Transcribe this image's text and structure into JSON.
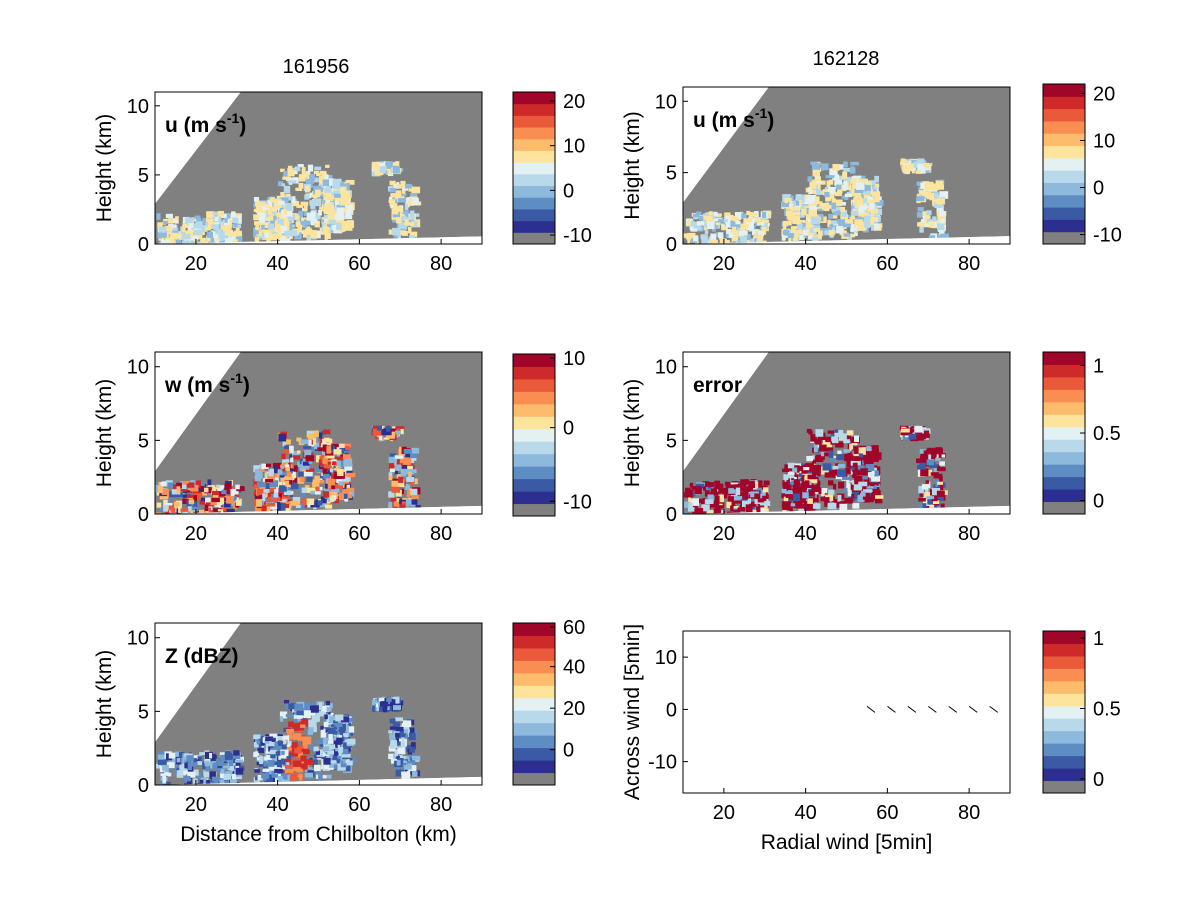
{
  "figure": {
    "columns": [
      {
        "title": "161956"
      },
      {
        "title": "162128"
      }
    ]
  },
  "colormap": [
    "#2c2f8f",
    "#3a5aa5",
    "#5e8dc4",
    "#8db9dd",
    "#b7d9ea",
    "#e3f1f3",
    "#fde49d",
    "#fdbc6c",
    "#f98d52",
    "#ea5a3a",
    "#cf2a2a",
    "#a0052a"
  ],
  "missing_color": "#808080",
  "chart_data": [
    {
      "id": "u1",
      "type": "heatmap",
      "label": "u (m s",
      "label_sup": "-1",
      "label_tail": ")",
      "xlim": [
        10,
        90
      ],
      "ylim": [
        0,
        11
      ],
      "xticks": [
        20,
        40,
        60,
        80
      ],
      "yticks": [
        0,
        5,
        10
      ],
      "ylabel": "Height (km)",
      "xlabel": "",
      "colorbar": {
        "range": [
          -12,
          22
        ],
        "ticks": [
          20,
          10,
          0,
          -10
        ]
      }
    },
    {
      "id": "u2",
      "type": "heatmap",
      "label": "u (m s",
      "label_sup": "-1",
      "label_tail": ")",
      "xlim": [
        10,
        90
      ],
      "ylim": [
        0,
        11
      ],
      "xticks": [
        20,
        40,
        60,
        80
      ],
      "yticks": [
        0,
        5,
        10
      ],
      "ylabel": "Height (km)",
      "xlabel": "",
      "colorbar": {
        "range": [
          -12,
          22
        ],
        "ticks": [
          20,
          10,
          0,
          -10
        ]
      }
    },
    {
      "id": "w",
      "type": "heatmap",
      "label": "w (m s",
      "label_sup": "-1",
      "label_tail": ")",
      "xlim": [
        10,
        90
      ],
      "ylim": [
        0,
        11
      ],
      "xticks": [
        20,
        40,
        60,
        80
      ],
      "yticks": [
        0,
        5,
        10
      ],
      "ylabel": "Height (km)",
      "xlabel": "",
      "colorbar": {
        "range": [
          -12,
          10
        ],
        "ticks": [
          10,
          0,
          -10
        ]
      }
    },
    {
      "id": "err",
      "type": "heatmap",
      "label": "error",
      "label_sup": "",
      "label_tail": "",
      "xlim": [
        10,
        90
      ],
      "ylim": [
        0,
        11
      ],
      "xticks": [
        20,
        40,
        60,
        80
      ],
      "yticks": [
        0,
        5,
        10
      ],
      "ylabel": "Height (km)",
      "xlabel": "",
      "colorbar": {
        "range": [
          -0.1,
          1.1
        ],
        "ticks": [
          1,
          0.5,
          0
        ]
      }
    },
    {
      "id": "z",
      "type": "heatmap",
      "label": "Z (dBZ)",
      "label_sup": "",
      "label_tail": "",
      "xlim": [
        10,
        90
      ],
      "ylim": [
        0,
        11
      ],
      "xticks": [
        20,
        40,
        60,
        80
      ],
      "yticks": [
        0,
        5,
        10
      ],
      "ylabel": "Height (km)",
      "xlabel": "Distance from Chilbolton (km)",
      "colorbar": {
        "range": [
          -17,
          61
        ],
        "ticks": [
          60,
          40,
          20,
          0
        ]
      }
    },
    {
      "id": "q",
      "type": "scatter",
      "label": "",
      "xlim": [
        10,
        90
      ],
      "ylim": [
        -16,
        15
      ],
      "xticks": [
        20,
        40,
        60,
        80
      ],
      "yticks": [
        10,
        0,
        -10
      ],
      "ylabel": "Across wind [5min]",
      "xlabel": "Radial wind [5min]",
      "arrows": [
        {
          "x": 56,
          "y": 0
        },
        {
          "x": 61,
          "y": 0
        },
        {
          "x": 66,
          "y": 0
        },
        {
          "x": 71,
          "y": 0
        },
        {
          "x": 76,
          "y": 0
        },
        {
          "x": 81,
          "y": 0
        },
        {
          "x": 86,
          "y": 0
        }
      ],
      "colorbar": {
        "range": [
          -0.1,
          1.05
        ],
        "ticks": [
          1,
          0.5,
          0
        ]
      }
    }
  ]
}
